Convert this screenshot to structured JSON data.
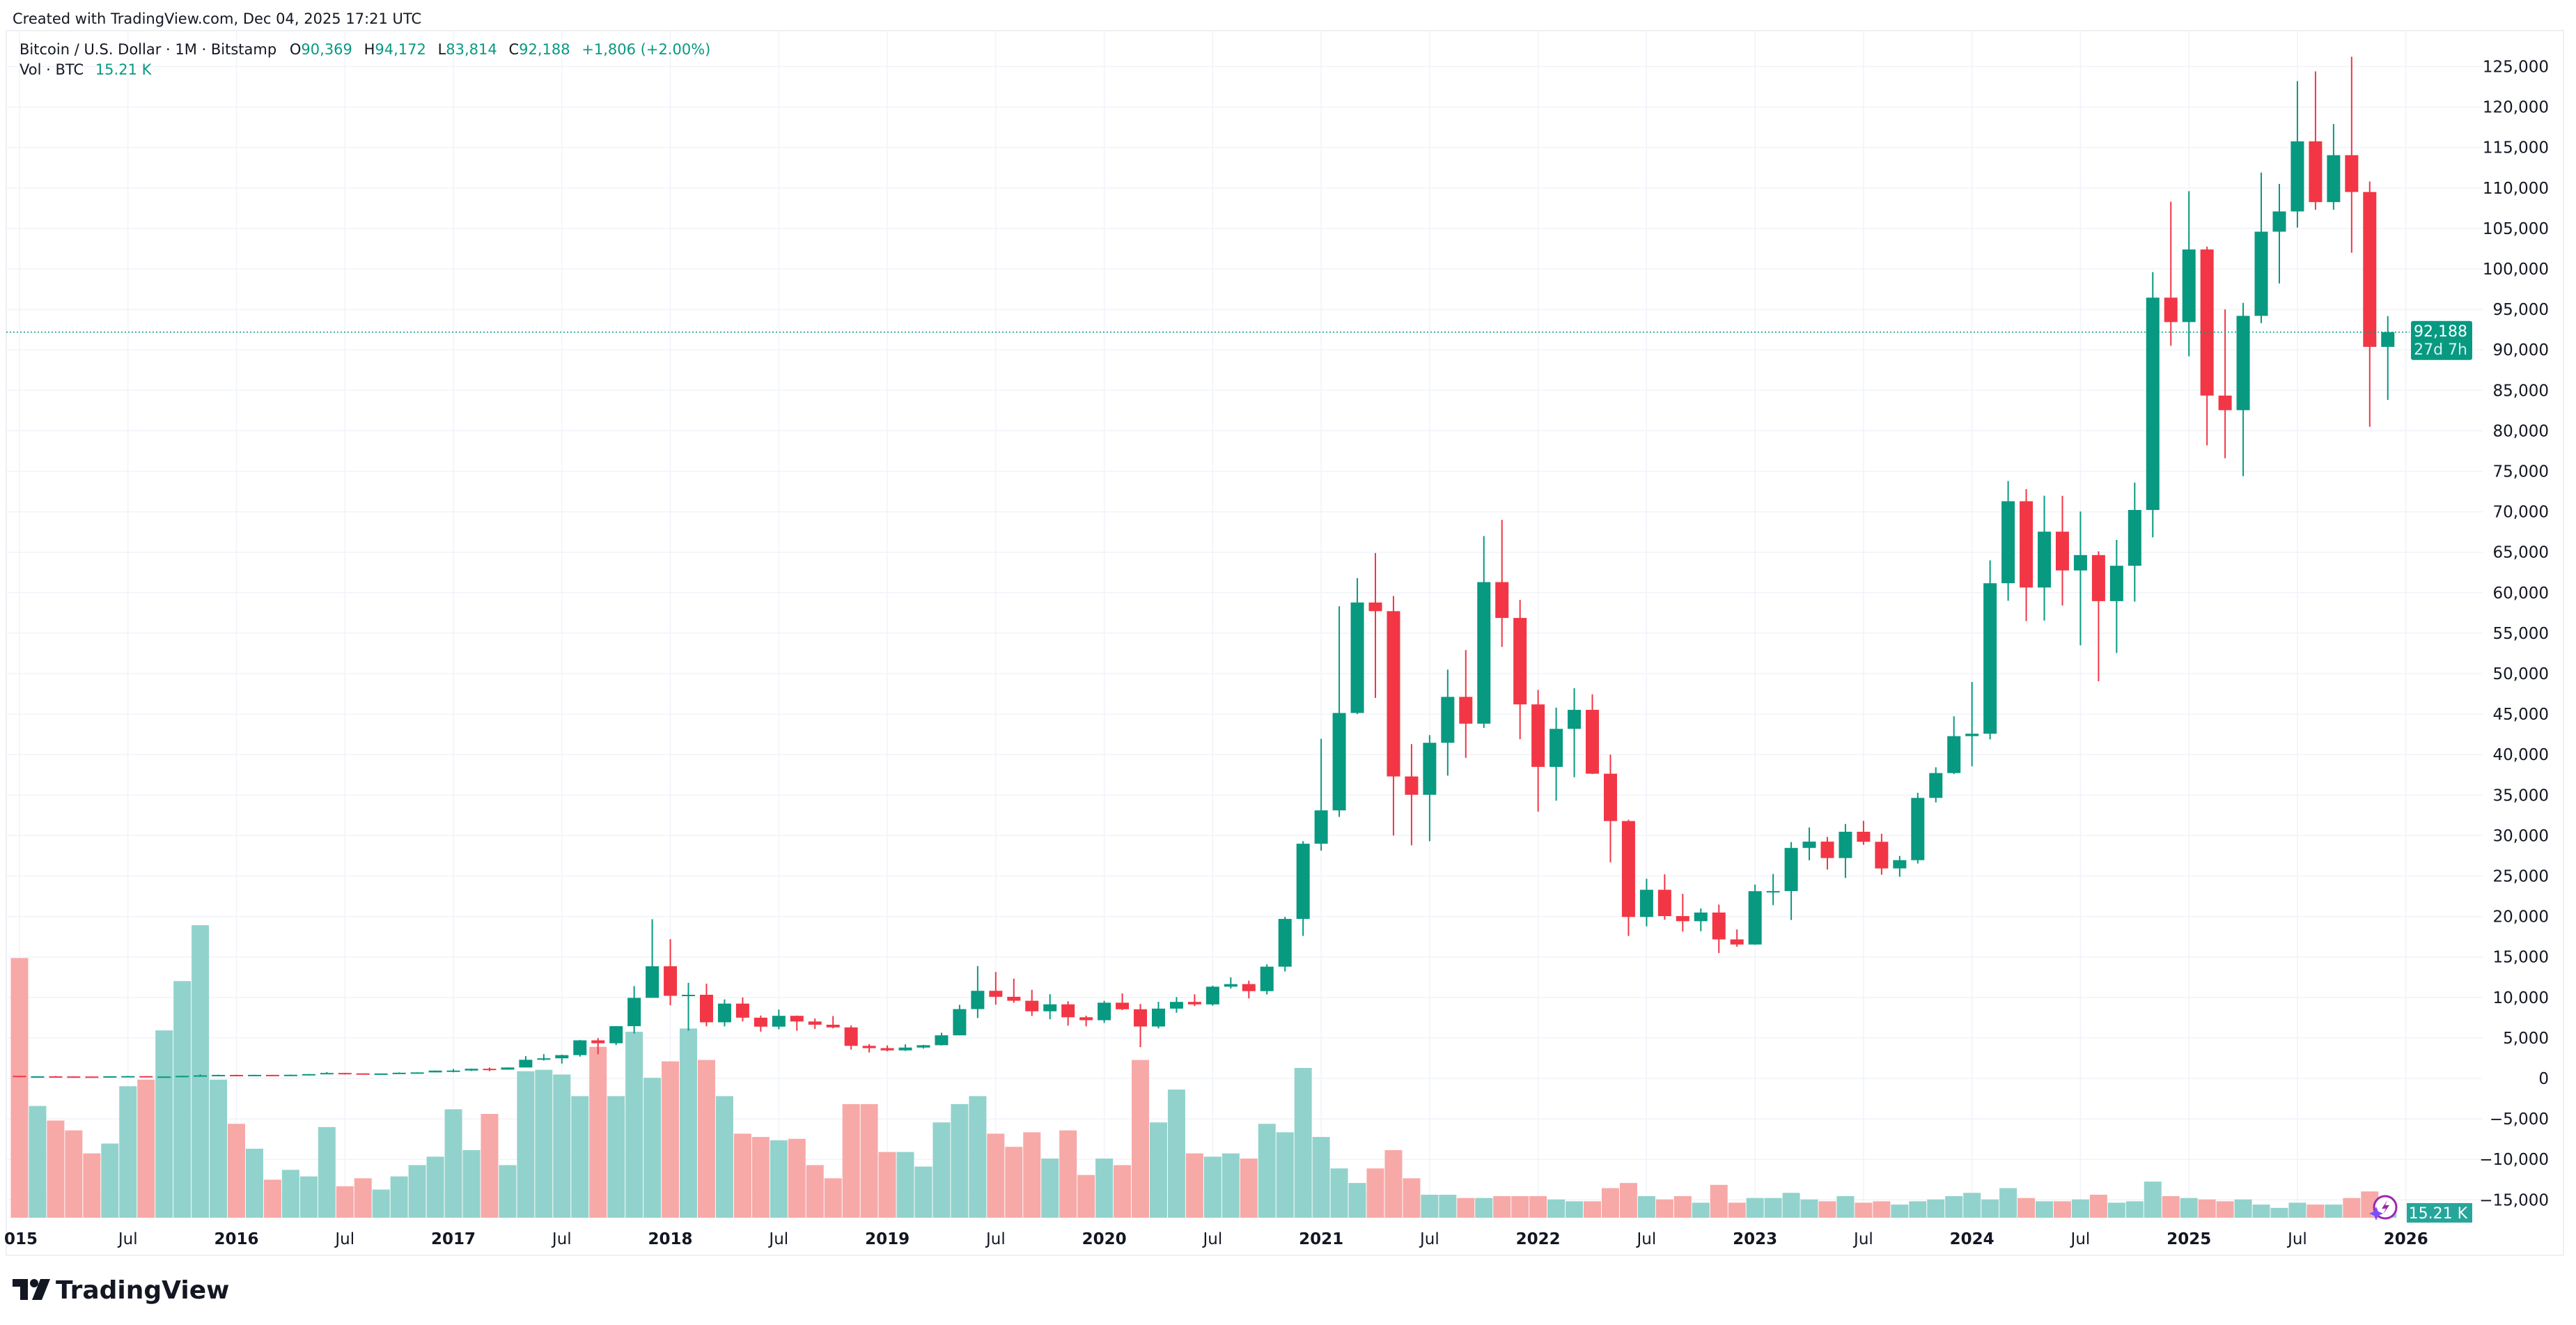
{
  "watermark_text": "Created with TradingView.com, Dec 04, 2025 17:21 UTC",
  "legend": {
    "symbol": "Bitcoin / U.S. Dollar · 1M · Bitstamp",
    "open_label": "O",
    "open": "90,369",
    "high_label": "H",
    "high": "94,172",
    "low_label": "L",
    "low": "83,814",
    "close_label": "C",
    "close": "92,188",
    "change": "+1,806 (+2.00%)",
    "volume_label": "Vol · BTC",
    "volume_value": "15.21 K"
  },
  "price_tag": {
    "price": "92,188",
    "countdown": "27d 7h"
  },
  "volume_tag": "15.21 K",
  "logo_text": "TradingView",
  "colors": {
    "up": "#089981",
    "down": "#f23645",
    "vol_up": "#92d2cc",
    "vol_down": "#f7a9a7",
    "grid": "#f0f3fa",
    "tag": "#089981",
    "vol_tag": "#26a69a"
  },
  "icons": [
    "tradingview-logo-icon",
    "lightning-assistant-icon"
  ],
  "chart_data": {
    "type": "candlestick",
    "interval": "1M",
    "start_month": "2015-01",
    "ylim": [
      -15000,
      127000
    ],
    "y_ticks": [
      "125,000",
      "120,000",
      "115,000",
      "110,000",
      "105,000",
      "100,000",
      "95,000",
      "90,000",
      "85,000",
      "80,000",
      "75,000",
      "70,000",
      "65,000",
      "60,000",
      "55,000",
      "50,000",
      "45,000",
      "40,000",
      "35,000",
      "30,000",
      "25,000",
      "20,000",
      "15,000",
      "10,000",
      "5,000",
      "0",
      "−5,000",
      "−10,000",
      "−15,000"
    ],
    "y_tick_values": [
      125000,
      120000,
      115000,
      110000,
      105000,
      100000,
      95000,
      90000,
      85000,
      80000,
      75000,
      70000,
      65000,
      60000,
      55000,
      50000,
      45000,
      40000,
      35000,
      30000,
      25000,
      20000,
      15000,
      10000,
      5000,
      0,
      -5000,
      -10000,
      -15000
    ],
    "x_ticks": [
      {
        "label": "015",
        "date": "2015-01",
        "year": true
      },
      {
        "label": "Jul",
        "date": "2015-07"
      },
      {
        "label": "2016",
        "date": "2016-01",
        "year": true
      },
      {
        "label": "Jul",
        "date": "2016-07"
      },
      {
        "label": "2017",
        "date": "2017-01",
        "year": true
      },
      {
        "label": "Jul",
        "date": "2017-07"
      },
      {
        "label": "2018",
        "date": "2018-01",
        "year": true
      },
      {
        "label": "Jul",
        "date": "2018-07"
      },
      {
        "label": "2019",
        "date": "2019-01",
        "year": true
      },
      {
        "label": "Jul",
        "date": "2019-07"
      },
      {
        "label": "2020",
        "date": "2020-01",
        "year": true
      },
      {
        "label": "Jul",
        "date": "2020-07"
      },
      {
        "label": "2021",
        "date": "2021-01",
        "year": true
      },
      {
        "label": "Jul",
        "date": "2021-07"
      },
      {
        "label": "2022",
        "date": "2022-01",
        "year": true
      },
      {
        "label": "Jul",
        "date": "2022-07"
      },
      {
        "label": "2023",
        "date": "2023-01",
        "year": true
      },
      {
        "label": "Jul",
        "date": "2023-07"
      },
      {
        "label": "2024",
        "date": "2024-01",
        "year": true
      },
      {
        "label": "Jul",
        "date": "2024-07"
      },
      {
        "label": "2025",
        "date": "2025-01",
        "year": true
      },
      {
        "label": "Jul",
        "date": "2025-07"
      },
      {
        "label": "2026",
        "date": "2026-01",
        "year": true
      }
    ],
    "ohlc_columns": [
      "open",
      "high",
      "low",
      "close"
    ],
    "ohlc": [
      [
        320,
        320,
        152,
        217
      ],
      [
        217,
        265,
        212,
        254
      ],
      [
        254,
        300,
        240,
        244
      ],
      [
        244,
        262,
        214,
        236
      ],
      [
        236,
        247,
        225,
        230
      ],
      [
        230,
        268,
        221,
        263
      ],
      [
        263,
        315,
        253,
        284
      ],
      [
        284,
        285,
        198,
        230
      ],
      [
        230,
        247,
        224,
        236
      ],
      [
        236,
        336,
        235,
        314
      ],
      [
        314,
        503,
        307,
        377
      ],
      [
        377,
        466,
        346,
        430
      ],
      [
        430,
        465,
        354,
        368
      ],
      [
        368,
        448,
        365,
        437
      ],
      [
        437,
        439,
        368,
        416
      ],
      [
        416,
        467,
        411,
        448
      ],
      [
        448,
        548,
        436,
        531
      ],
      [
        531,
        780,
        524,
        673
      ],
      [
        673,
        682,
        474,
        624
      ],
      [
        624,
        626,
        542,
        573
      ],
      [
        573,
        612,
        568,
        608
      ],
      [
        608,
        741,
        605,
        700
      ],
      [
        700,
        752,
        683,
        742
      ],
      [
        742,
        979,
        740,
        963
      ],
      [
        963,
        1161,
        751,
        970
      ],
      [
        970,
        1210,
        920,
        1190
      ],
      [
        1190,
        1350,
        891,
        1080
      ],
      [
        1080,
        1361,
        1076,
        1348
      ],
      [
        1348,
        2760,
        1348,
        2300
      ],
      [
        2300,
        2999,
        2200,
        2480
      ],
      [
        2480,
        2930,
        1833,
        2875
      ],
      [
        2875,
        4750,
        2680,
        4700
      ],
      [
        4700,
        4980,
        2980,
        4340
      ],
      [
        4340,
        6470,
        4110,
        6450
      ],
      [
        6450,
        11400,
        5540,
        9950
      ],
      [
        9950,
        19666,
        10800,
        13850
      ],
      [
        13850,
        17200,
        9035,
        10200
      ],
      [
        10200,
        11800,
        5900,
        10330
      ],
      [
        10330,
        11700,
        6430,
        6930
      ],
      [
        6930,
        9760,
        6425,
        9240
      ],
      [
        9240,
        10000,
        7040,
        7500
      ],
      [
        7500,
        7770,
        5780,
        6390
      ],
      [
        6390,
        8500,
        6070,
        7730
      ],
      [
        7730,
        7760,
        5880,
        7030
      ],
      [
        7030,
        7410,
        6100,
        6630
      ],
      [
        6630,
        7700,
        6180,
        6300
      ],
      [
        6300,
        6550,
        3550,
        4020
      ],
      [
        4020,
        4240,
        3200,
        3740
      ],
      [
        3740,
        4070,
        3350,
        3460
      ],
      [
        3460,
        4210,
        3390,
        3810
      ],
      [
        3810,
        4140,
        3680,
        4100
      ],
      [
        4100,
        5640,
        4070,
        5320
      ],
      [
        5320,
        9090,
        5320,
        8560
      ],
      [
        8560,
        13880,
        7450,
        10820
      ],
      [
        10820,
        13150,
        9100,
        10080
      ],
      [
        10080,
        12330,
        9330,
        9590
      ],
      [
        9590,
        10940,
        7710,
        8290
      ],
      [
        8290,
        10400,
        7300,
        9150
      ],
      [
        9150,
        9530,
        6520,
        7550
      ],
      [
        7550,
        7750,
        6430,
        7190
      ],
      [
        7190,
        9580,
        6860,
        9350
      ],
      [
        9350,
        10500,
        8440,
        8540
      ],
      [
        8540,
        9190,
        3860,
        6410
      ],
      [
        6410,
        9460,
        6170,
        8620
      ],
      [
        8620,
        10050,
        8120,
        9450
      ],
      [
        9450,
        10390,
        8930,
        9140
      ],
      [
        9140,
        11450,
        8990,
        11330
      ],
      [
        11330,
        12480,
        11100,
        11650
      ],
      [
        11650,
        12070,
        9880,
        10780
      ],
      [
        10780,
        14100,
        10370,
        13800
      ],
      [
        13800,
        19950,
        13200,
        19700
      ],
      [
        19700,
        29300,
        17600,
        28990
      ],
      [
        28990,
        41950,
        28130,
        33110
      ],
      [
        33110,
        58330,
        32300,
        45140
      ],
      [
        45140,
        61800,
        45000,
        58790
      ],
      [
        58790,
        64900,
        47000,
        57720
      ],
      [
        57720,
        59600,
        30000,
        37300
      ],
      [
        37300,
        41300,
        28800,
        35040
      ],
      [
        35040,
        42400,
        29300,
        41460
      ],
      [
        41460,
        50500,
        37400,
        47130
      ],
      [
        47130,
        52900,
        39600,
        43820
      ],
      [
        43820,
        67000,
        43300,
        61310
      ],
      [
        61310,
        69000,
        53300,
        56880
      ],
      [
        56880,
        59100,
        41900,
        46200
      ],
      [
        46200,
        47990,
        32950,
        38480
      ],
      [
        38480,
        45800,
        34300,
        43180
      ],
      [
        43180,
        48200,
        37200,
        45530
      ],
      [
        45530,
        47450,
        37600,
        37640
      ],
      [
        37640,
        40000,
        26700,
        31790
      ],
      [
        31790,
        31960,
        17600,
        19940
      ],
      [
        19940,
        24670,
        18780,
        23300
      ],
      [
        23300,
        25200,
        19600,
        20050
      ],
      [
        20050,
        22800,
        18130,
        19420
      ],
      [
        19420,
        20990,
        18180,
        20490
      ],
      [
        20490,
        21470,
        15480,
        17170
      ],
      [
        17170,
        18400,
        16260,
        16540
      ],
      [
        16540,
        23950,
        16500,
        23130
      ],
      [
        23130,
        25250,
        21400,
        23140
      ],
      [
        23140,
        29190,
        19570,
        28470
      ],
      [
        28470,
        31000,
        26940,
        29250
      ],
      [
        29250,
        29830,
        25800,
        27220
      ],
      [
        27220,
        31430,
        24760,
        30470
      ],
      [
        30470,
        31820,
        28860,
        29230
      ],
      [
        29230,
        30220,
        25160,
        25940
      ],
      [
        25940,
        27480,
        24900,
        26960
      ],
      [
        26960,
        35280,
        26540,
        34650
      ],
      [
        34650,
        38430,
        34090,
        37720
      ],
      [
        37720,
        44730,
        37600,
        42280
      ],
      [
        42280,
        48970,
        38550,
        42580
      ],
      [
        42580,
        64000,
        41880,
        61170
      ],
      [
        61170,
        73800,
        59000,
        71300
      ],
      [
        71300,
        72800,
        56500,
        60640
      ],
      [
        60640,
        71980,
        56550,
        67540
      ],
      [
        67540,
        71970,
        58410,
        62750
      ],
      [
        62750,
        70030,
        53500,
        64650
      ],
      [
        64650,
        65110,
        49050,
        58960
      ],
      [
        58960,
        66520,
        52550,
        63330
      ],
      [
        63330,
        73600,
        58900,
        70220
      ],
      [
        70220,
        99600,
        66840,
        96450
      ],
      [
        96450,
        108300,
        90500,
        93430
      ],
      [
        93430,
        109600,
        89200,
        102400
      ],
      [
        102400,
        102750,
        78200,
        84350
      ],
      [
        84350,
        95000,
        76600,
        82550
      ],
      [
        82550,
        95800,
        74400,
        94200
      ],
      [
        94200,
        111900,
        93300,
        104600
      ],
      [
        104600,
        110500,
        98200,
        107100
      ],
      [
        107100,
        123200,
        105100,
        115760
      ],
      [
        115760,
        124400,
        107300,
        108250
      ],
      [
        108250,
        117900,
        107300,
        114050
      ],
      [
        114050,
        126200,
        102000,
        109500
      ],
      [
        109500,
        110800,
        80500,
        90370
      ],
      [
        90369,
        94172,
        83814,
        92188
      ]
    ],
    "volume_unit": "K BTC",
    "volume": [
      553,
      238,
      207,
      186,
      137,
      158,
      280,
      294,
      399,
      504,
      623,
      294,
      200,
      147,
      81,
      102,
      88,
      193,
      67,
      84,
      60,
      88,
      112,
      130,
      231,
      144,
      221,
      112,
      312,
      315,
      305,
      259,
      364,
      259,
      396,
      298,
      333,
      403,
      336,
      259,
      179,
      172,
      165,
      168,
      112,
      84,
      242,
      242,
      140,
      140,
      109,
      203,
      242,
      259,
      179,
      151,
      182,
      126,
      186,
      91,
      126,
      112,
      336,
      203,
      273,
      137,
      130,
      137,
      126,
      200,
      182,
      319,
      172,
      105,
      74,
      105,
      144,
      84,
      49,
      49,
      42,
      42,
      46,
      46,
      46,
      39,
      35,
      35,
      63,
      74,
      46,
      39,
      46,
      32,
      70,
      32,
      42,
      42,
      53,
      39,
      35,
      46,
      32,
      35,
      28,
      35,
      39,
      46,
      53,
      39,
      63,
      42,
      35,
      35,
      39,
      49,
      32,
      35,
      77,
      46,
      42,
      39,
      35,
      39,
      28,
      21,
      32,
      28,
      28,
      42,
      56,
      15.21
    ],
    "last_price": 92188,
    "grid": true
  }
}
